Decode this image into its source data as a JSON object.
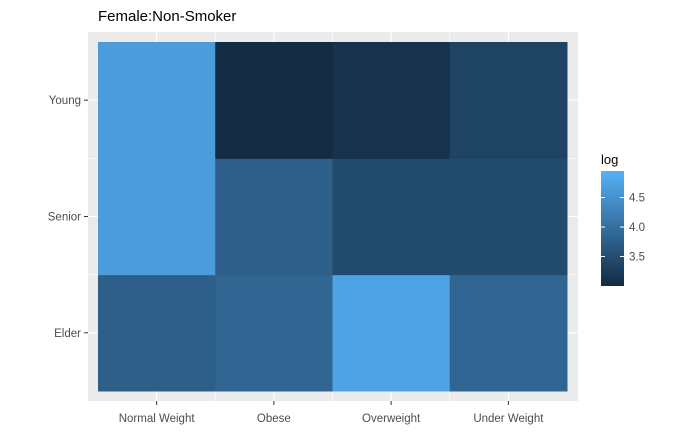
{
  "chart_data": {
    "type": "heatmap",
    "title": "Female:Non-Smoker",
    "x_categories": [
      "Normal Weight",
      "Obese",
      "Overweight",
      "Under Weight"
    ],
    "y_categories": [
      "Elder",
      "Senior",
      "Young"
    ],
    "values": [
      [
        3.75,
        3.85,
        4.75,
        3.85
      ],
      [
        4.65,
        3.75,
        3.45,
        3.45
      ],
      [
        4.65,
        3.0,
        3.1,
        3.35
      ]
    ],
    "legend": {
      "title": "log",
      "breaks": [
        3.5,
        4.0,
        4.5
      ],
      "break_labels": [
        "3.5",
        "4.0",
        "4.5"
      ],
      "range": [
        3.0,
        4.95
      ],
      "low_color": "#132B43",
      "high_color": "#56B1F7"
    },
    "panel_background": "#EBEBEB",
    "grid": true
  }
}
